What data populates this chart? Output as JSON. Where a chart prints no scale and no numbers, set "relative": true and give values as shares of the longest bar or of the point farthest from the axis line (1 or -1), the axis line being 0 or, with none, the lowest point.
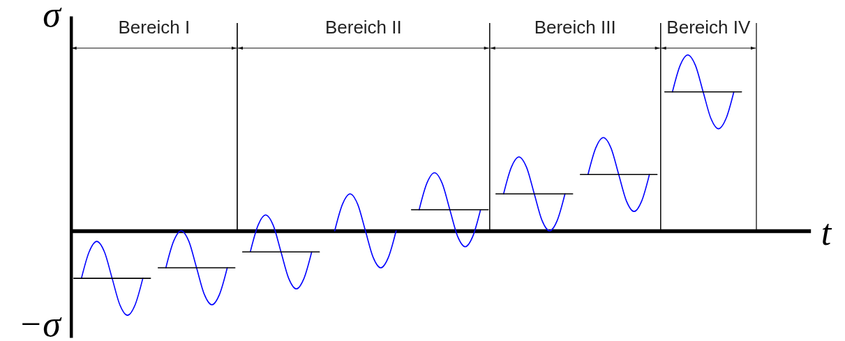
{
  "chart_data": {
    "type": "line",
    "relative": true,
    "xlabel": "t",
    "ylabel": "σ",
    "annotations": [
      "Bereich I",
      "Bereich II",
      "Bereich III",
      "Bereich IV",
      "−σ"
    ],
    "categories": [
      null,
      null,
      null,
      null,
      null,
      null,
      null,
      null,
      null,
      null,
      null,
      null,
      null,
      null,
      null,
      null,
      null,
      null,
      null,
      null,
      null,
      null,
      null,
      null,
      null,
      null,
      null,
      null,
      null,
      null,
      null,
      null,
      null,
      null,
      null,
      null,
      null,
      null,
      null,
      null,
      null,
      null,
      null,
      null,
      null,
      null,
      null,
      null,
      null,
      null,
      null,
      null,
      null,
      null,
      null,
      null,
      null,
      null,
      null,
      null,
      null,
      null,
      null,
      null,
      null,
      null,
      null,
      null,
      null,
      null,
      null,
      null,
      null,
      null,
      null,
      null,
      null,
      null,
      null,
      null,
      null,
      null,
      null,
      null,
      null,
      null,
      null,
      null,
      null,
      null,
      null,
      null,
      null,
      null,
      null,
      null,
      null
    ],
    "series": [
      {
        "color": "#0000ff",
        "values": [
          null,
          -0.27,
          -0.12,
          -0.06,
          -0.12,
          -0.27,
          -0.42,
          -0.48,
          -0.42,
          -0.27,
          null,
          null,
          null,
          null,
          null,
          null,
          null,
          null,
          null,
          null,
          null,
          null,
          null,
          null,
          null,
          null,
          null,
          null,
          null,
          null,
          null,
          null,
          null,
          null,
          null,
          null,
          null,
          null,
          null,
          null,
          null,
          null,
          null,
          null,
          null,
          null,
          null,
          null,
          null,
          null,
          null,
          null,
          null,
          null,
          null,
          null,
          null,
          null,
          null,
          null,
          null,
          null,
          null,
          null,
          null,
          null,
          null,
          null,
          null,
          null,
          null,
          null,
          null,
          null,
          null,
          null,
          null,
          null,
          null,
          null,
          null,
          null,
          null,
          null,
          null,
          null,
          null,
          null,
          null,
          null,
          null,
          null,
          null,
          null,
          null,
          null,
          null
        ]
      },
      {
        "color": "#000000",
        "values": [
          -0.27,
          -0.27,
          -0.27,
          -0.27,
          -0.27,
          -0.27,
          -0.27,
          -0.27,
          -0.27,
          -0.27,
          -0.27,
          null,
          null,
          null,
          null,
          null,
          null,
          null,
          null,
          null,
          null,
          null,
          null,
          null,
          null,
          null,
          null,
          null,
          null,
          null,
          null,
          null,
          null,
          null,
          null,
          null,
          null,
          null,
          null,
          null,
          null,
          null,
          null,
          null,
          null,
          null,
          null,
          null,
          null,
          null,
          null,
          null,
          null,
          null,
          null,
          null,
          null,
          null,
          null,
          null,
          null,
          null,
          null,
          null,
          null,
          null,
          null,
          null,
          null,
          null,
          null,
          null,
          null,
          null,
          null,
          null,
          null,
          null,
          null,
          null,
          null,
          null,
          null,
          null,
          null,
          null,
          null,
          null,
          null,
          null,
          null,
          null,
          null,
          null,
          null,
          null,
          null
        ]
      },
      {
        "color": "#0000ff",
        "values": [
          null,
          null,
          null,
          null,
          null,
          null,
          null,
          null,
          null,
          null,
          null,
          null,
          -0.21,
          -0.06,
          0,
          -0.06,
          -0.21,
          -0.36,
          -0.42,
          -0.36,
          -0.21,
          null,
          null,
          null,
          null,
          null,
          null,
          null,
          null,
          null,
          null,
          null,
          null,
          null,
          null,
          null,
          null,
          null,
          null,
          null,
          null,
          null,
          null,
          null,
          null,
          null,
          null,
          null,
          null,
          null,
          null,
          null,
          null,
          null,
          null,
          null,
          null,
          null,
          null,
          null,
          null,
          null,
          null,
          null,
          null,
          null,
          null,
          null,
          null,
          null,
          null,
          null,
          null,
          null,
          null,
          null,
          null,
          null,
          null,
          null,
          null,
          null,
          null,
          null,
          null,
          null,
          null,
          null,
          null,
          null,
          null,
          null,
          null,
          null,
          null,
          null,
          null
        ]
      },
      {
        "color": "#000000",
        "values": [
          null,
          null,
          null,
          null,
          null,
          null,
          null,
          null,
          null,
          null,
          null,
          -0.21,
          -0.21,
          -0.21,
          -0.21,
          -0.21,
          -0.21,
          -0.21,
          -0.21,
          -0.21,
          -0.21,
          -0.21,
          null,
          null,
          null,
          null,
          null,
          null,
          null,
          null,
          null,
          null,
          null,
          null,
          null,
          null,
          null,
          null,
          null,
          null,
          null,
          null,
          null,
          null,
          null,
          null,
          null,
          null,
          null,
          null,
          null,
          null,
          null,
          null,
          null,
          null,
          null,
          null,
          null,
          null,
          null,
          null,
          null,
          null,
          null,
          null,
          null,
          null,
          null,
          null,
          null,
          null,
          null,
          null,
          null,
          null,
          null,
          null,
          null,
          null,
          null,
          null,
          null,
          null,
          null,
          null,
          null,
          null,
          null,
          null,
          null,
          null,
          null,
          null,
          null,
          null,
          null
        ]
      },
      {
        "color": "#0000ff",
        "values": [
          null,
          null,
          null,
          null,
          null,
          null,
          null,
          null,
          null,
          null,
          null,
          null,
          null,
          null,
          null,
          null,
          null,
          null,
          null,
          null,
          null,
          null,
          null,
          -0.12,
          0.03,
          0.09,
          0.03,
          -0.12,
          -0.27,
          -0.33,
          -0.27,
          -0.12,
          null,
          null,
          null,
          null,
          null,
          null,
          null,
          null,
          null,
          null,
          null,
          null,
          null,
          null,
          null,
          null,
          null,
          null,
          null,
          null,
          null,
          null,
          null,
          null,
          null,
          null,
          null,
          null,
          null,
          null,
          null,
          null,
          null,
          null,
          null,
          null,
          null,
          null,
          null,
          null,
          null,
          null,
          null,
          null,
          null,
          null,
          null,
          null,
          null,
          null,
          null,
          null,
          null,
          null,
          null,
          null,
          null,
          null,
          null,
          null,
          null,
          null,
          null,
          null,
          null
        ]
      },
      {
        "color": "#000000",
        "values": [
          null,
          null,
          null,
          null,
          null,
          null,
          null,
          null,
          null,
          null,
          null,
          null,
          null,
          null,
          null,
          null,
          null,
          null,
          null,
          null,
          null,
          null,
          -0.12,
          -0.12,
          -0.12,
          -0.12,
          -0.12,
          -0.12,
          -0.12,
          -0.12,
          -0.12,
          -0.12,
          -0.12,
          null,
          null,
          null,
          null,
          null,
          null,
          null,
          null,
          null,
          null,
          null,
          null,
          null,
          null,
          null,
          null,
          null,
          null,
          null,
          null,
          null,
          null,
          null,
          null,
          null,
          null,
          null,
          null,
          null,
          null,
          null,
          null,
          null,
          null,
          null,
          null,
          null,
          null,
          null,
          null,
          null,
          null,
          null,
          null,
          null,
          null,
          null,
          null,
          null,
          null,
          null,
          null,
          null,
          null,
          null,
          null,
          null,
          null,
          null,
          null,
          null,
          null,
          null,
          null
        ]
      },
      {
        "color": "#0000ff",
        "values": [
          null,
          null,
          null,
          null,
          null,
          null,
          null,
          null,
          null,
          null,
          null,
          null,
          null,
          null,
          null,
          null,
          null,
          null,
          null,
          null,
          null,
          null,
          null,
          null,
          null,
          null,
          null,
          null,
          null,
          null,
          null,
          null,
          null,
          null,
          0,
          0.15,
          0.21,
          0.15,
          0,
          -0.15,
          -0.21,
          -0.15,
          0,
          null,
          null,
          null,
          null,
          null,
          null,
          null,
          null,
          null,
          null,
          null,
          null,
          null,
          null,
          null,
          null,
          null,
          null,
          null,
          null,
          null,
          null,
          null,
          null,
          null,
          null,
          null,
          null,
          null,
          null,
          null,
          null,
          null,
          null,
          null,
          null,
          null,
          null,
          null,
          null,
          null,
          null,
          null,
          null,
          null,
          null,
          null,
          null,
          null,
          null,
          null,
          null,
          null,
          null
        ]
      },
      {
        "color": "#0000ff",
        "values": [
          null,
          null,
          null,
          null,
          null,
          null,
          null,
          null,
          null,
          null,
          null,
          null,
          null,
          null,
          null,
          null,
          null,
          null,
          null,
          null,
          null,
          null,
          null,
          null,
          null,
          null,
          null,
          null,
          null,
          null,
          null,
          null,
          null,
          null,
          null,
          null,
          null,
          null,
          null,
          null,
          null,
          null,
          null,
          null,
          null,
          0.12,
          0.27,
          0.33,
          0.27,
          0.12,
          -0.03,
          -0.09,
          -0.03,
          0.12,
          null,
          null,
          null,
          null,
          null,
          null,
          null,
          null,
          null,
          null,
          null,
          null,
          null,
          null,
          null,
          null,
          null,
          null,
          null,
          null,
          null,
          null,
          null,
          null,
          null,
          null,
          null,
          null,
          null,
          null,
          null,
          null,
          null,
          null,
          null,
          null,
          null,
          null,
          null,
          null,
          null,
          null,
          null
        ]
      },
      {
        "color": "#000000",
        "values": [
          null,
          null,
          null,
          null,
          null,
          null,
          null,
          null,
          null,
          null,
          null,
          null,
          null,
          null,
          null,
          null,
          null,
          null,
          null,
          null,
          null,
          null,
          null,
          null,
          null,
          null,
          null,
          null,
          null,
          null,
          null,
          null,
          null,
          null,
          null,
          null,
          null,
          null,
          null,
          null,
          null,
          null,
          null,
          null,
          0.12,
          0.12,
          0.12,
          0.12,
          0.12,
          0.12,
          0.12,
          0.12,
          0.12,
          0.12,
          0.12,
          null,
          null,
          null,
          null,
          null,
          null,
          null,
          null,
          null,
          null,
          null,
          null,
          null,
          null,
          null,
          null,
          null,
          null,
          null,
          null,
          null,
          null,
          null,
          null,
          null,
          null,
          null,
          null,
          null,
          null,
          null,
          null,
          null,
          null,
          null,
          null,
          null,
          null,
          null,
          null,
          null,
          null
        ]
      },
      {
        "color": "#0000ff",
        "values": [
          null,
          null,
          null,
          null,
          null,
          null,
          null,
          null,
          null,
          null,
          null,
          null,
          null,
          null,
          null,
          null,
          null,
          null,
          null,
          null,
          null,
          null,
          null,
          null,
          null,
          null,
          null,
          null,
          null,
          null,
          null,
          null,
          null,
          null,
          null,
          null,
          null,
          null,
          null,
          null,
          null,
          null,
          null,
          null,
          null,
          null,
          null,
          null,
          null,
          null,
          null,
          null,
          null,
          null,
          null,
          null,
          0.21,
          0.36,
          0.42,
          0.36,
          0.21,
          0.06,
          0,
          0.06,
          0.21,
          null,
          null,
          null,
          null,
          null,
          null,
          null,
          null,
          null,
          null,
          null,
          null,
          null,
          null,
          null,
          null,
          null,
          null,
          null,
          null,
          null,
          null,
          null,
          null,
          null,
          null,
          null,
          null,
          null,
          null,
          null,
          null
        ]
      },
      {
        "color": "#000000",
        "values": [
          null,
          null,
          null,
          null,
          null,
          null,
          null,
          null,
          null,
          null,
          null,
          null,
          null,
          null,
          null,
          null,
          null,
          null,
          null,
          null,
          null,
          null,
          null,
          null,
          null,
          null,
          null,
          null,
          null,
          null,
          null,
          null,
          null,
          null,
          null,
          null,
          null,
          null,
          null,
          null,
          null,
          null,
          null,
          null,
          null,
          null,
          null,
          null,
          null,
          null,
          null,
          null,
          null,
          null,
          null,
          0.21,
          0.21,
          0.21,
          0.21,
          0.21,
          0.21,
          0.21,
          0.21,
          0.21,
          0.21,
          0.21,
          null,
          null,
          null,
          null,
          null,
          null,
          null,
          null,
          null,
          null,
          null,
          null,
          null,
          null,
          null,
          null,
          null,
          null,
          null,
          null,
          null,
          null,
          null,
          null,
          null,
          null,
          null,
          null,
          null,
          null,
          null
        ]
      },
      {
        "color": "#0000ff",
        "values": [
          null,
          null,
          null,
          null,
          null,
          null,
          null,
          null,
          null,
          null,
          null,
          null,
          null,
          null,
          null,
          null,
          null,
          null,
          null,
          null,
          null,
          null,
          null,
          null,
          null,
          null,
          null,
          null,
          null,
          null,
          null,
          null,
          null,
          null,
          null,
          null,
          null,
          null,
          null,
          null,
          null,
          null,
          null,
          null,
          null,
          null,
          null,
          null,
          null,
          null,
          null,
          null,
          null,
          null,
          null,
          null,
          null,
          null,
          null,
          null,
          null,
          null,
          null,
          null,
          null,
          null,
          null,
          0.32,
          0.47,
          0.53,
          0.47,
          0.32,
          0.17,
          0.11,
          0.17,
          0.32,
          null,
          null,
          null,
          null,
          null,
          null,
          null,
          null,
          null,
          null,
          null,
          null,
          null,
          null,
          null,
          null,
          null,
          null,
          null,
          null,
          null
        ]
      },
      {
        "color": "#000000",
        "values": [
          null,
          null,
          null,
          null,
          null,
          null,
          null,
          null,
          null,
          null,
          null,
          null,
          null,
          null,
          null,
          null,
          null,
          null,
          null,
          null,
          null,
          null,
          null,
          null,
          null,
          null,
          null,
          null,
          null,
          null,
          null,
          null,
          null,
          null,
          null,
          null,
          null,
          null,
          null,
          null,
          null,
          null,
          null,
          null,
          null,
          null,
          null,
          null,
          null,
          null,
          null,
          null,
          null,
          null,
          null,
          null,
          null,
          null,
          null,
          null,
          null,
          null,
          null,
          null,
          null,
          null,
          0.32,
          0.32,
          0.32,
          0.32,
          0.32,
          0.32,
          0.32,
          0.32,
          0.32,
          0.32,
          0.32,
          null,
          null,
          null,
          null,
          null,
          null,
          null,
          null,
          null,
          null,
          null,
          null,
          null,
          null,
          null,
          null,
          null,
          null,
          null,
          null
        ]
      },
      {
        "color": "#0000ff",
        "values": [
          null,
          null,
          null,
          null,
          null,
          null,
          null,
          null,
          null,
          null,
          null,
          null,
          null,
          null,
          null,
          null,
          null,
          null,
          null,
          null,
          null,
          null,
          null,
          null,
          null,
          null,
          null,
          null,
          null,
          null,
          null,
          null,
          null,
          null,
          null,
          null,
          null,
          null,
          null,
          null,
          null,
          null,
          null,
          null,
          null,
          null,
          null,
          null,
          null,
          null,
          null,
          null,
          null,
          null,
          null,
          null,
          null,
          null,
          null,
          null,
          null,
          null,
          null,
          null,
          null,
          null,
          null,
          null,
          null,
          null,
          null,
          null,
          null,
          null,
          null,
          null,
          null,
          null,
          0.79,
          0.94,
          1,
          0.94,
          0.79,
          0.64,
          0.58,
          0.64,
          0.79,
          null,
          null,
          null,
          null,
          null,
          null,
          null,
          null,
          null,
          null
        ]
      },
      {
        "color": "#000000",
        "values": [
          null,
          null,
          null,
          null,
          null,
          null,
          null,
          null,
          null,
          null,
          null,
          null,
          null,
          null,
          null,
          null,
          null,
          null,
          null,
          null,
          null,
          null,
          null,
          null,
          null,
          null,
          null,
          null,
          null,
          null,
          null,
          null,
          null,
          null,
          null,
          null,
          null,
          null,
          null,
          null,
          null,
          null,
          null,
          null,
          null,
          null,
          null,
          null,
          null,
          null,
          null,
          null,
          null,
          null,
          null,
          null,
          null,
          null,
          null,
          null,
          null,
          null,
          null,
          null,
          null,
          null,
          null,
          null,
          null,
          null,
          null,
          null,
          null,
          null,
          null,
          null,
          null,
          0.79,
          0.79,
          0.79,
          0.79,
          0.79,
          0.79,
          0.79,
          0.79,
          0.79,
          0.79,
          0.79,
          null,
          null,
          null,
          null,
          null,
          null,
          null,
          null,
          null
        ]
      }
    ]
  }
}
